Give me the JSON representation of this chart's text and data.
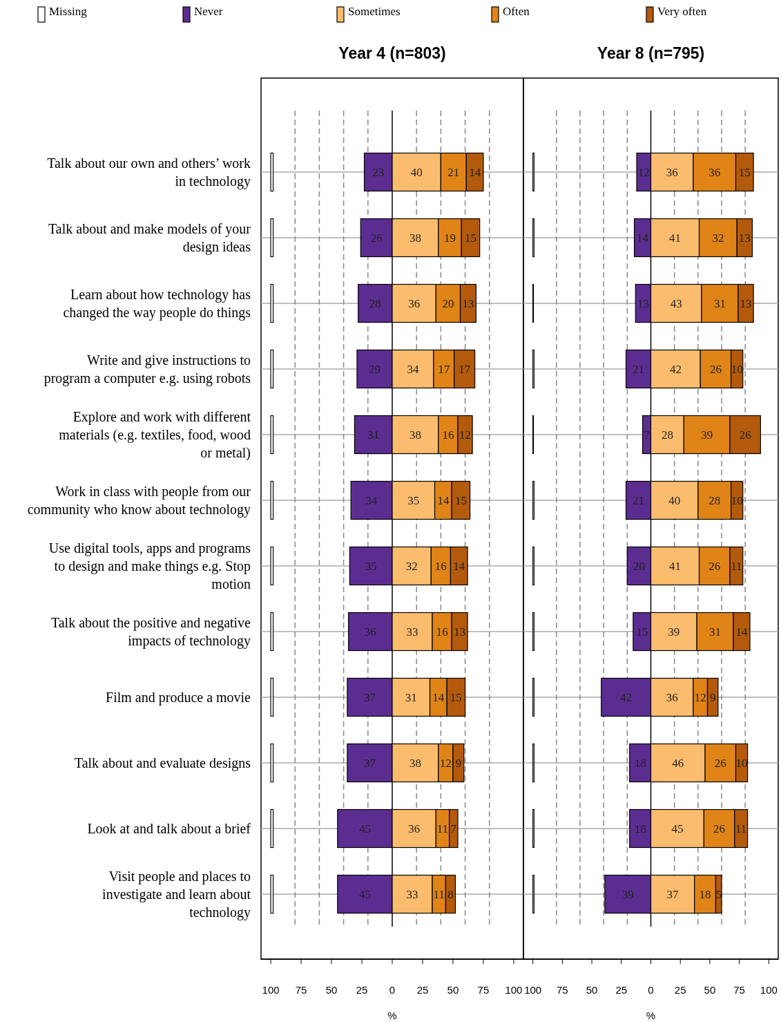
{
  "chart_data": [
    {
      "type": "bar",
      "orientation": "horizontal",
      "title": "Year 4 (n=803)",
      "xlabel": "%",
      "legend": "top",
      "grid": "y",
      "categories": [
        "Talk about our own and others’ work in technology",
        "Talk about and make models of your design ideas",
        "Learn about how technology has changed the way people do things",
        "Write and give instructions to program a computer e.g. using robots",
        "Explore and work with different materials (e.g. textiles, food, wood or metal)",
        "Work in class with people from our community who know about technology",
        "Use digital tools, apps and programs to design and make things e.g. Stop motion",
        "Talk about the positive and negative impacts of technology",
        "Film and produce a movie",
        "Talk about and evaluate designs",
        "Look at and talk about a brief",
        "Visit people and places to investigate and learn about technology"
      ],
      "xlim": [
        -108,
        108
      ],
      "xticks": [
        {
          "value": -100,
          "label": "100"
        },
        {
          "value": -75,
          "label": "75"
        },
        {
          "value": -50,
          "label": "50"
        },
        {
          "value": -25,
          "label": "25"
        },
        0,
        25,
        50,
        75,
        100
      ],
      "ref_lines": [
        {
          "axis": "x",
          "value": -80,
          "line_style": "dashed",
          "color": "#888888"
        },
        {
          "axis": "x",
          "value": -60,
          "line_style": "dashed",
          "color": "#888888"
        },
        {
          "axis": "x",
          "value": -40,
          "line_style": "dashed",
          "color": "#888888"
        },
        {
          "axis": "x",
          "value": -20,
          "line_style": "dashed",
          "color": "#888888"
        },
        {
          "axis": "x",
          "value": 0,
          "line_style": "solid",
          "color": "#000000"
        },
        {
          "axis": "x",
          "value": 20,
          "line_style": "dashed",
          "color": "#888888"
        },
        {
          "axis": "x",
          "value": 40,
          "line_style": "dashed",
          "color": "#888888"
        },
        {
          "axis": "x",
          "value": 60,
          "line_style": "dashed",
          "color": "#888888"
        },
        {
          "axis": "x",
          "value": 80,
          "line_style": "dashed",
          "color": "#888888"
        }
      ],
      "series": [
        {
          "name": "Missing",
          "color": "#ffffff",
          "base": [
            -100,
            -100,
            -100,
            -100,
            -100,
            -100,
            -100,
            -100,
            -100,
            -100,
            -100,
            -100
          ],
          "values": [
            2,
            2,
            2,
            2,
            2,
            2,
            2,
            2,
            2,
            2,
            2,
            2
          ]
        },
        {
          "name": "Never",
          "color": "#5c2d91",
          "base": [
            -23,
            -26,
            -28,
            -29,
            -31,
            -34,
            -35,
            -36,
            -37,
            -37,
            -45,
            -45
          ],
          "values": [
            23,
            26,
            28,
            29,
            31,
            34,
            35,
            36,
            37,
            37,
            45,
            45
          ],
          "value_labels": [
            "23",
            "26",
            "28",
            "29",
            "31",
            "34",
            "35",
            "36",
            "37",
            "37",
            "45",
            "45"
          ]
        },
        {
          "name": "Sometimes",
          "color": "#fbbc6e",
          "base": [
            0,
            0,
            0,
            0,
            0,
            0,
            0,
            0,
            0,
            0,
            0,
            0
          ],
          "values": [
            40,
            38,
            36,
            34,
            38,
            35,
            32,
            33,
            31,
            38,
            36,
            33
          ],
          "value_labels": [
            "40",
            "38",
            "36",
            "34",
            "38",
            "35",
            "32",
            "33",
            "31",
            "38",
            "36",
            "33"
          ]
        },
        {
          "name": "Often",
          "color": "#e08418",
          "base": [
            40,
            38,
            36,
            34,
            38,
            35,
            32,
            33,
            31,
            38,
            36,
            33
          ],
          "values": [
            21,
            19,
            20,
            17,
            16,
            14,
            16,
            16,
            14,
            12,
            11,
            11
          ],
          "value_labels": [
            "21",
            "19",
            "20",
            "17",
            "16",
            "14",
            "16",
            "16",
            "14",
            "12",
            "11",
            "11"
          ]
        },
        {
          "name": "Very often",
          "color": "#b35a0c",
          "base": [
            61,
            57,
            56,
            51,
            54,
            49,
            48,
            49,
            45,
            50,
            47,
            44
          ],
          "values": [
            14,
            15,
            13,
            17,
            12,
            15,
            14,
            13,
            15,
            9,
            7,
            8
          ],
          "value_labels": [
            "14",
            "15",
            "13",
            "17",
            "12",
            "15",
            "14",
            "13",
            "15",
            "9",
            "7",
            "8"
          ]
        }
      ]
    },
    {
      "type": "bar",
      "orientation": "horizontal",
      "title": "Year 8 (n=795)",
      "xlabel": "%",
      "grid": "y",
      "tick_labels": "x",
      "categories": [
        null,
        null,
        null,
        null,
        null,
        null,
        null,
        null,
        null,
        null,
        null,
        null
      ],
      "xlim": [
        -108,
        108
      ],
      "xticks": [
        {
          "value": -100,
          "label": "100"
        },
        {
          "value": -75,
          "label": "75"
        },
        {
          "value": -50,
          "label": "50"
        },
        {
          "value": -25,
          "label": "25"
        },
        0,
        25,
        50,
        75,
        100
      ],
      "ref_lines": [
        {
          "axis": "x",
          "value": -80,
          "line_style": "dashed",
          "color": "#888888"
        },
        {
          "axis": "x",
          "value": -60,
          "line_style": "dashed",
          "color": "#888888"
        },
        {
          "axis": "x",
          "value": -40,
          "line_style": "dashed",
          "color": "#888888"
        },
        {
          "axis": "x",
          "value": -20,
          "line_style": "dashed",
          "color": "#888888"
        },
        {
          "axis": "x",
          "value": 0,
          "line_style": "solid",
          "color": "#000000"
        },
        {
          "axis": "x",
          "value": 20,
          "line_style": "dashed",
          "color": "#888888"
        },
        {
          "axis": "x",
          "value": 40,
          "line_style": "dashed",
          "color": "#888888"
        },
        {
          "axis": "x",
          "value": 60,
          "line_style": "dashed",
          "color": "#888888"
        },
        {
          "axis": "x",
          "value": 80,
          "line_style": "dashed",
          "color": "#888888"
        }
      ],
      "series": [
        {
          "color": "#ffffff",
          "base": [
            -100,
            -100,
            -100,
            -100,
            -100,
            -100,
            -100,
            -100,
            -100,
            -100,
            -100,
            -100
          ],
          "values": [
            1,
            1,
            0.5,
            1,
            0.5,
            1,
            1,
            1,
            1,
            1,
            1,
            1
          ]
        },
        {
          "color": "#5c2d91",
          "base": [
            -12,
            -14,
            -13,
            -21,
            -7,
            -21,
            -20,
            -15,
            -42,
            -18,
            -18,
            -39
          ],
          "values": [
            12,
            14,
            13,
            21,
            7,
            21,
            20,
            15,
            42,
            18,
            18,
            39
          ],
          "value_labels": [
            "12",
            "14",
            "13",
            "21",
            "7",
            "21",
            "20",
            "15",
            "42",
            "18",
            "18",
            "39"
          ]
        },
        {
          "color": "#fbbc6e",
          "base": [
            0,
            0,
            0,
            0,
            0,
            0,
            0,
            0,
            0,
            0,
            0,
            0
          ],
          "values": [
            36,
            41,
            43,
            42,
            28,
            40,
            41,
            39,
            36,
            46,
            45,
            37
          ],
          "value_labels": [
            "36",
            "41",
            "43",
            "42",
            "28",
            "40",
            "41",
            "39",
            "36",
            "46",
            "45",
            "37"
          ]
        },
        {
          "color": "#e08418",
          "base": [
            36,
            41,
            43,
            42,
            28,
            40,
            41,
            39,
            36,
            46,
            45,
            37
          ],
          "values": [
            36,
            32,
            31,
            26,
            39,
            28,
            26,
            31,
            12,
            26,
            26,
            18
          ],
          "value_labels": [
            "36",
            "32",
            "31",
            "26",
            "39",
            "28",
            "26",
            "31",
            "12",
            "26",
            "26",
            "18"
          ]
        },
        {
          "color": "#b35a0c",
          "base": [
            72,
            73,
            74,
            68,
            67,
            68,
            67,
            70,
            48,
            72,
            71,
            55
          ],
          "values": [
            15,
            13,
            13,
            10,
            26,
            10,
            11,
            14,
            9,
            10,
            11,
            5
          ],
          "value_labels": [
            "15",
            "13",
            "13",
            "10",
            "26",
            "10",
            "11",
            "14",
            "9",
            "10",
            "11",
            "5"
          ]
        }
      ]
    }
  ]
}
